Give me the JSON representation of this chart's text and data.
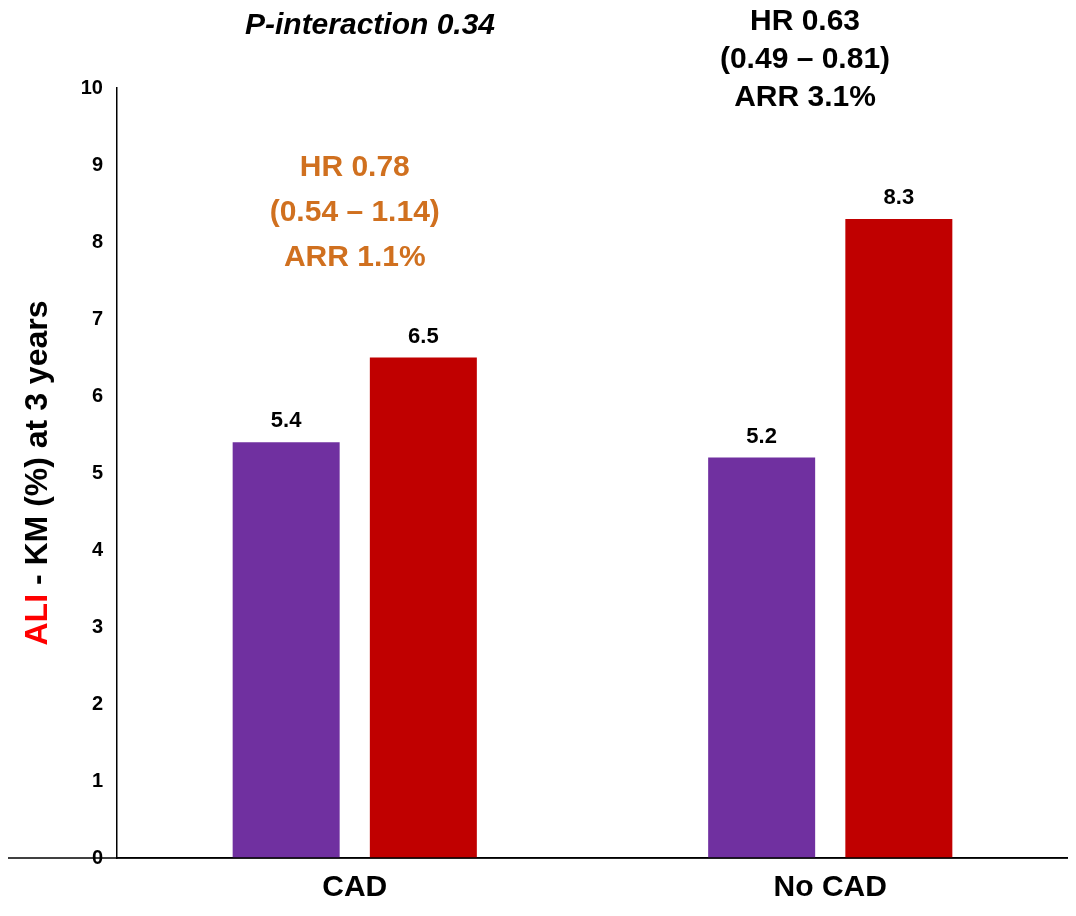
{
  "chart_data": {
    "type": "bar",
    "ylabel": "ALI - KM (%) at 3 years",
    "categories": [
      "CAD",
      "No CAD"
    ],
    "series": [
      {
        "color": "#7030a0",
        "values": [
          5.4,
          5.2
        ]
      },
      {
        "color": "#c00000",
        "values": [
          6.5,
          8.3
        ]
      }
    ],
    "ylim": [
      0,
      10
    ],
    "yticks": [
      0,
      1,
      2,
      3,
      4,
      5,
      6,
      7,
      8,
      9,
      10
    ],
    "grid": false,
    "legend": false,
    "data_labels": true,
    "annotations": [
      "P-interaction 0.34",
      "HR 0.78\n(0.54 – 1.14)\nARR 1.1%",
      "HR 0.63\n(0.49 – 0.81)\nARR 3.1%"
    ]
  }
}
